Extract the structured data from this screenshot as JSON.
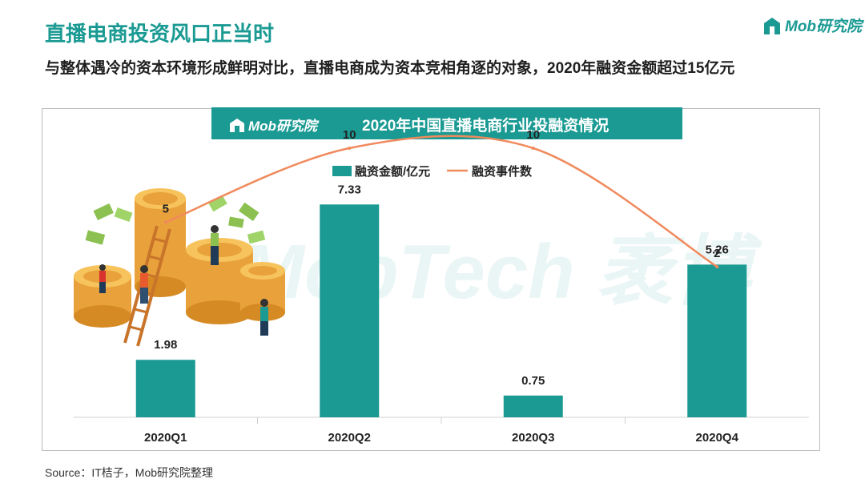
{
  "header": {
    "title": "直播电商投资风口正当时",
    "subtitle": "与整体遇冷的资本环境形成鲜明对比，直播电商成为资本竞相角逐的对象，2020年融资金额超过15亿元",
    "brand": "Mob研究院"
  },
  "chart_panel": {
    "header_brand": "Mob研究院",
    "watermark": "MobTech 袤博"
  },
  "chart_data": {
    "type": "bar",
    "title": "2020年中国直播电商行业投融资情况",
    "categories": [
      "2020Q1",
      "2020Q2",
      "2020Q3",
      "2020Q4"
    ],
    "series": [
      {
        "name": "融资金额/亿元",
        "type": "bar",
        "values": [
          1.98,
          7.33,
          0.75,
          5.26
        ],
        "color": "#1a9a93"
      },
      {
        "name": "融资事件数",
        "type": "line",
        "values": [
          5,
          10,
          10,
          2
        ],
        "color": "#f08a5d"
      }
    ],
    "legend_position": "top-center",
    "grid": false
  },
  "footer": {
    "source": "Source：IT桔子，Mob研究院整理"
  }
}
